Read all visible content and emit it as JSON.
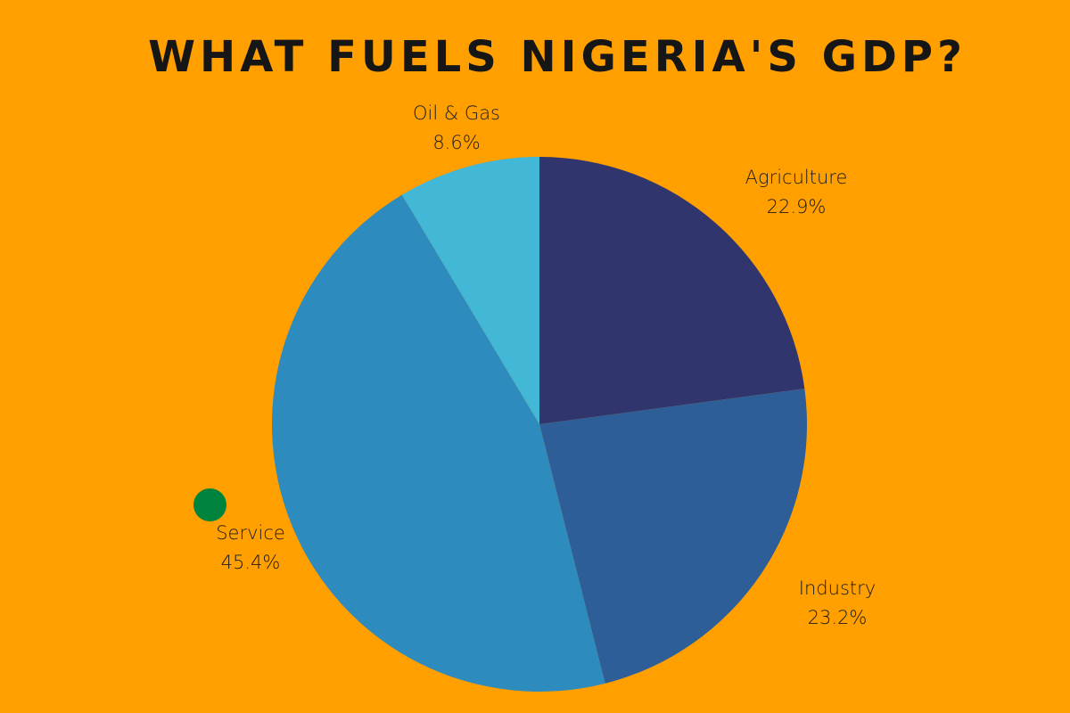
{
  "chart_data": {
    "type": "pie",
    "title": "WHAT FUELS NIGERIA'S GDP?",
    "start_angle": "12 o'clock, clockwise",
    "slices": [
      {
        "label": "Agriculture",
        "value": 22.9,
        "value_label": "22.9%",
        "color": "#31356e"
      },
      {
        "label": "Industry",
        "value": 23.2,
        "value_label": "23.2%",
        "color": "#2e5e98"
      },
      {
        "label": "Service",
        "value": 45.4,
        "value_label": "45.4%",
        "color": "#2e8bbd"
      },
      {
        "label": "Oil & Gas",
        "value": 8.6,
        "value_label": "8.6%",
        "color": "#42b7d6"
      }
    ]
  },
  "colors": {
    "background": "#ff9f00",
    "marker_dot": "#00843d"
  }
}
